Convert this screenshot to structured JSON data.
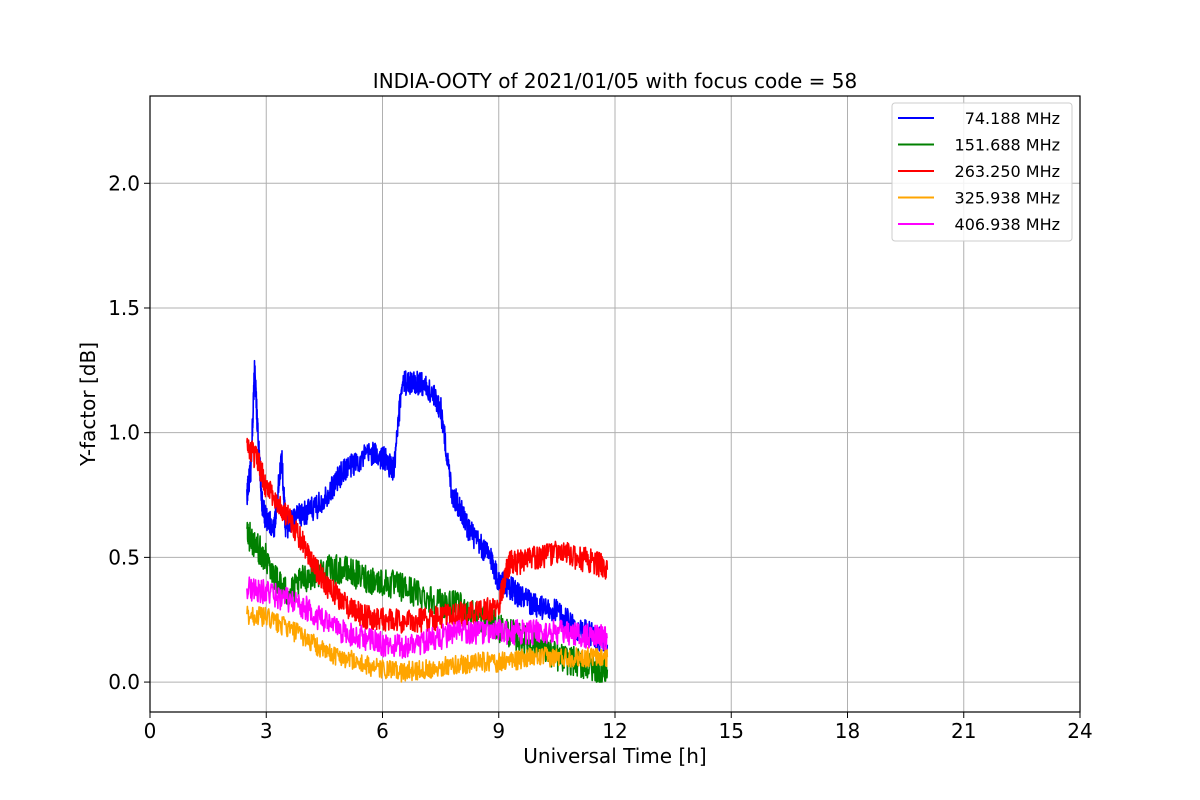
{
  "chart_data": {
    "type": "line",
    "title": "INDIA-OOTY of 2021/01/05 with focus code = 58",
    "xlabel": "Universal Time [h]",
    "ylabel": "Y-factor [dB]",
    "xlim": [
      0,
      24
    ],
    "ylim": [
      -0.12,
      2.35
    ],
    "xticks": [
      "0",
      "3",
      "6",
      "9",
      "12",
      "15",
      "18",
      "21",
      "24"
    ],
    "yticks": [
      "0.0",
      "0.5",
      "1.0",
      "1.5",
      "2.0"
    ],
    "grid": true,
    "legend_position": "top-right",
    "series": [
      {
        "name": "74.188 MHz",
        "color": "#0000ff",
        "x": [
          2.5,
          2.6,
          2.7,
          2.8,
          2.9,
          3.0,
          3.2,
          3.4,
          3.5,
          3.7,
          4.0,
          4.3,
          4.7,
          5.0,
          5.3,
          5.7,
          6.0,
          6.3,
          6.5,
          6.8,
          7.0,
          7.3,
          7.5,
          7.8,
          8.0,
          8.2,
          8.5,
          8.8,
          9.0,
          9.3,
          9.5,
          9.8,
          10.0,
          10.5,
          11.0,
          11.5,
          11.8
        ],
        "y": [
          0.75,
          0.85,
          1.25,
          0.95,
          0.7,
          0.65,
          0.62,
          0.9,
          0.62,
          0.65,
          0.68,
          0.7,
          0.78,
          0.85,
          0.88,
          0.92,
          0.9,
          0.85,
          1.2,
          1.2,
          1.2,
          1.15,
          1.1,
          0.75,
          0.7,
          0.62,
          0.55,
          0.5,
          0.4,
          0.38,
          0.35,
          0.32,
          0.3,
          0.28,
          0.22,
          0.18,
          0.15
        ]
      },
      {
        "name": "151.688 MHz",
        "color": "#008000",
        "x": [
          2.5,
          2.7,
          3.0,
          3.3,
          3.6,
          4.0,
          4.5,
          5.0,
          5.5,
          6.0,
          6.5,
          7.0,
          7.5,
          8.0,
          8.5,
          9.0,
          9.5,
          10.0,
          10.5,
          11.0,
          11.5,
          11.8
        ],
        "y": [
          0.6,
          0.55,
          0.5,
          0.4,
          0.35,
          0.42,
          0.45,
          0.45,
          0.42,
          0.4,
          0.38,
          0.35,
          0.32,
          0.3,
          0.26,
          0.22,
          0.18,
          0.15,
          0.1,
          0.08,
          0.05,
          0.05
        ]
      },
      {
        "name": "263.250 MHz",
        "color": "#ff0000",
        "x": [
          2.5,
          2.8,
          3.0,
          3.3,
          3.6,
          4.0,
          4.3,
          4.6,
          5.0,
          5.3,
          5.6,
          6.0,
          6.5,
          7.0,
          7.5,
          8.0,
          8.5,
          9.0,
          9.2,
          9.3,
          9.6,
          10.0,
          10.5,
          11.0,
          11.5,
          11.8
        ],
        "y": [
          0.95,
          0.88,
          0.78,
          0.72,
          0.65,
          0.55,
          0.45,
          0.38,
          0.32,
          0.28,
          0.26,
          0.25,
          0.24,
          0.25,
          0.26,
          0.27,
          0.28,
          0.3,
          0.45,
          0.48,
          0.48,
          0.5,
          0.52,
          0.5,
          0.48,
          0.45
        ]
      },
      {
        "name": "325.938 MHz",
        "color": "#ffa500",
        "x": [
          2.5,
          3.0,
          3.5,
          4.0,
          4.5,
          5.0,
          5.5,
          6.0,
          6.5,
          7.0,
          7.5,
          8.0,
          8.5,
          9.0,
          9.5,
          10.0,
          10.5,
          11.0,
          11.5,
          11.8
        ],
        "y": [
          0.27,
          0.26,
          0.22,
          0.18,
          0.12,
          0.1,
          0.07,
          0.05,
          0.04,
          0.05,
          0.06,
          0.07,
          0.08,
          0.08,
          0.09,
          0.1,
          0.1,
          0.1,
          0.1,
          0.1
        ]
      },
      {
        "name": "406.938 MHz",
        "color": "#ff00ff",
        "x": [
          2.5,
          3.0,
          3.5,
          4.0,
          4.5,
          5.0,
          5.5,
          6.0,
          6.5,
          7.0,
          7.5,
          8.0,
          8.5,
          9.0,
          9.5,
          10.0,
          10.5,
          11.0,
          11.5,
          11.8
        ],
        "y": [
          0.38,
          0.36,
          0.33,
          0.3,
          0.24,
          0.2,
          0.18,
          0.15,
          0.14,
          0.16,
          0.18,
          0.2,
          0.2,
          0.2,
          0.2,
          0.2,
          0.2,
          0.19,
          0.18,
          0.18
        ]
      }
    ]
  }
}
